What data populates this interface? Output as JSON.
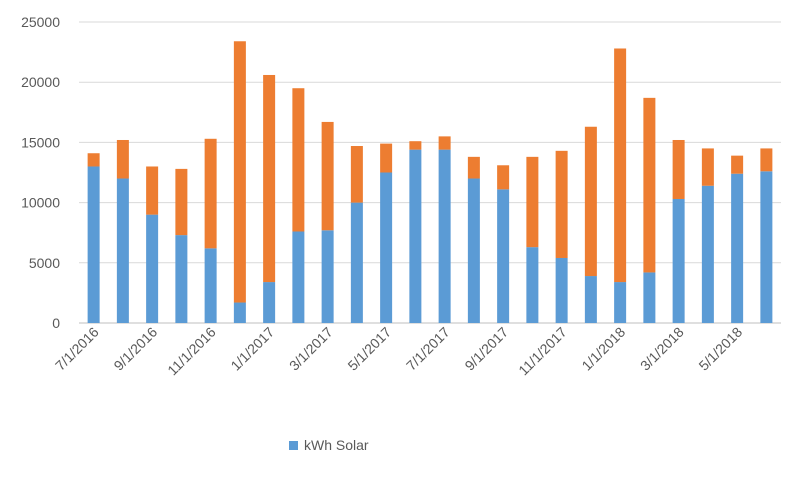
{
  "chart_data": {
    "type": "bar",
    "stacked": true,
    "categories": [
      "7/1/2016",
      "8/1/2016",
      "9/1/2016",
      "10/1/2016",
      "11/1/2016",
      "12/1/2016",
      "1/1/2017",
      "2/1/2017",
      "3/1/2017",
      "4/1/2017",
      "5/1/2017",
      "6/1/2017",
      "7/1/2017",
      "8/1/2017",
      "9/1/2017",
      "10/1/2017",
      "11/1/2017",
      "12/1/2017",
      "1/1/2018",
      "2/1/2018",
      "3/1/2018",
      "4/1/2018",
      "5/1/2018",
      "6/1/2018"
    ],
    "tick_labels": [
      "7/1/2016",
      "9/1/2016",
      "11/1/2016",
      "1/1/2017",
      "3/1/2017",
      "5/1/2017",
      "7/1/2017",
      "9/1/2017",
      "11/1/2017",
      "1/1/2018",
      "3/1/2018",
      "5/1/2018"
    ],
    "series": [
      {
        "name": "kWh Solar",
        "color": "#5B9BD5",
        "values": [
          13000,
          12000,
          9000,
          7300,
          6200,
          1700,
          3400,
          7600,
          7700,
          10000,
          12500,
          14400,
          14400,
          12000,
          11100,
          6300,
          5400,
          3900,
          3400,
          4200,
          10300,
          11400,
          12400,
          12600
        ]
      },
      {
        "color": "#ED7D31",
        "values": [
          1100,
          3200,
          4000,
          5500,
          9100,
          21700,
          17200,
          11900,
          9000,
          4700,
          2400,
          700,
          1100,
          1800,
          2000,
          7500,
          8900,
          12400,
          19400,
          14500,
          4900,
          3100,
          1500,
          1900
        ]
      }
    ],
    "ylim": [
      0,
      25000
    ],
    "yticks": [
      0,
      5000,
      10000,
      15000,
      20000,
      25000
    ],
    "grid": true,
    "legend_position": "bottom"
  },
  "legend": {
    "label": "kWh Solar"
  }
}
